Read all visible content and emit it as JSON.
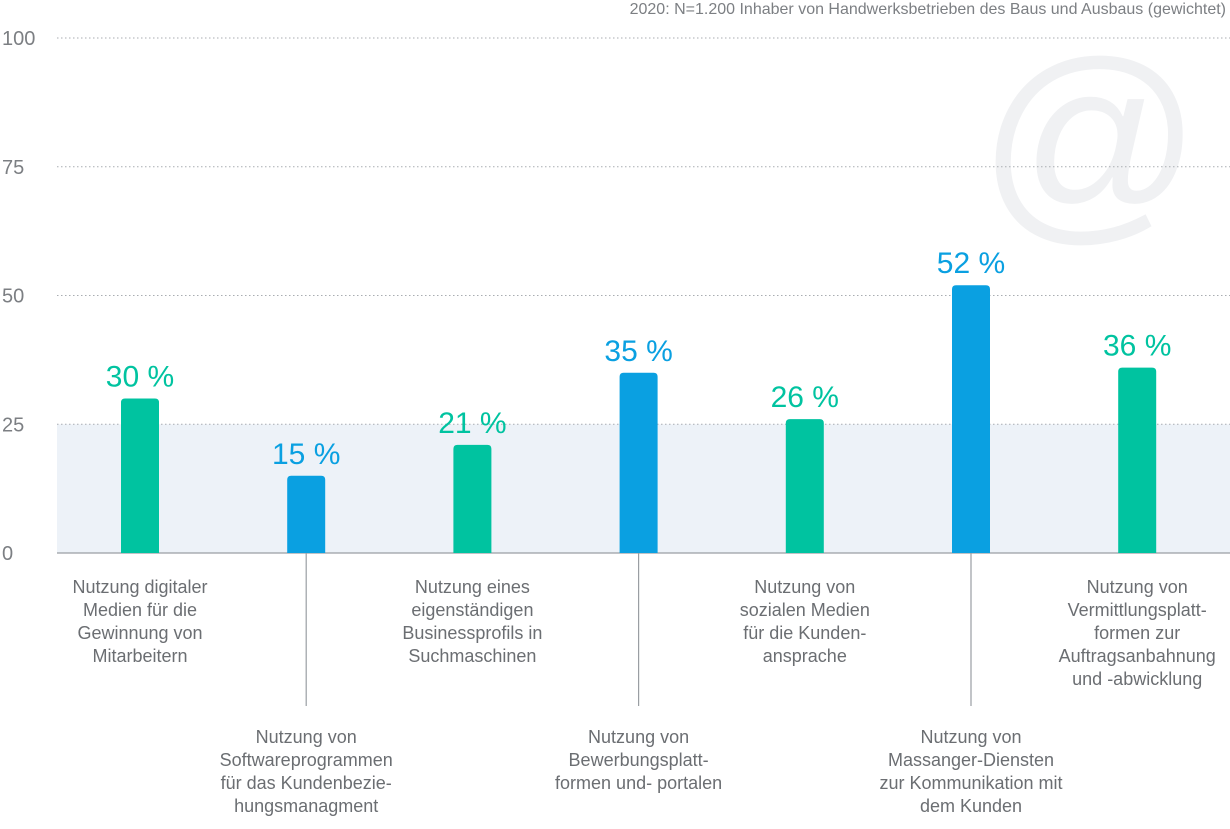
{
  "chart_data": {
    "type": "bar",
    "note": "2020: N=1.200 Inhaber von Handwerksbetrieben des Baus und Ausbaus (gewichtet)",
    "ylim": [
      0,
      100
    ],
    "yticks": [
      "0",
      "25",
      "50",
      "75",
      "100"
    ],
    "highlight_band": [
      0,
      25
    ],
    "watermark": "@",
    "categories": [
      [
        "Nutzung digitaler",
        "Medien für die",
        "Gewinnung von",
        "Mitarbeitern"
      ],
      [
        "Nutzung von",
        "Softwareprogrammen",
        "für das Kundenbezie-",
        "hungsmanagment"
      ],
      [
        "Nutzung eines",
        "eigenständigen",
        "Businessprofils in",
        "Suchmaschinen"
      ],
      [
        "Nutzung von",
        "Bewerbungsplatt-",
        "formen und- portalen"
      ],
      [
        "Nutzung von",
        "sozialen Medien",
        "für die Kunden-",
        "ansprache"
      ],
      [
        "Nutzung von",
        "Massanger-Diensten",
        "zur Kommunikation mit",
        "dem Kunden"
      ],
      [
        "Nutzung von",
        "Vermittlungsplatt-",
        "formen zur",
        "Auftragsanbahnung",
        "und -abwicklung"
      ]
    ],
    "values": [
      30,
      15,
      21,
      35,
      26,
      52,
      36
    ],
    "value_labels": [
      "30 %",
      "15 %",
      "21 %",
      "35 %",
      "26 %",
      "52 %",
      "36 %"
    ],
    "label_position": [
      "upper",
      "lower",
      "upper",
      "lower",
      "upper",
      "lower",
      "upper"
    ],
    "colors": [
      "#00c3a0",
      "#0aa0e1",
      "#00c3a0",
      "#0aa0e1",
      "#00c3a0",
      "#0aa0e1",
      "#00c3a0"
    ],
    "grid": true
  }
}
